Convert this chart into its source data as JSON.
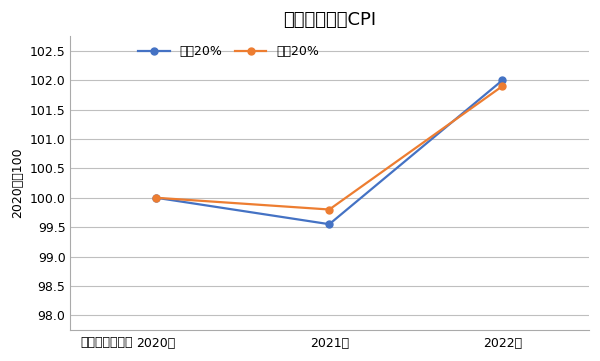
{
  "title": "年収階層別のCPI",
  "ylabel": "2020年＝100",
  "xlabel_note": "（出所）総務省",
  "x_labels": [
    "2020年",
    "2021年",
    "2022年"
  ],
  "x_values": [
    0,
    1,
    2
  ],
  "series": [
    {
      "label": "下位20%",
      "values": [
        100.0,
        99.55,
        102.0
      ],
      "color": "#4472C4",
      "marker": "o",
      "marker_size": 5
    },
    {
      "label": "上位20%",
      "values": [
        100.0,
        99.8,
        101.9
      ],
      "color": "#ED7D31",
      "marker": "o",
      "marker_size": 5
    }
  ],
  "ylim": [
    97.75,
    102.75
  ],
  "yticks": [
    98.0,
    98.5,
    99.0,
    99.5,
    100.0,
    100.5,
    101.0,
    101.5,
    102.0,
    102.5
  ],
  "background_color": "#FFFFFF",
  "grid_color": "#BFBFBF",
  "title_fontsize": 13,
  "axis_fontsize": 9,
  "legend_fontsize": 9,
  "note_fontsize": 9
}
